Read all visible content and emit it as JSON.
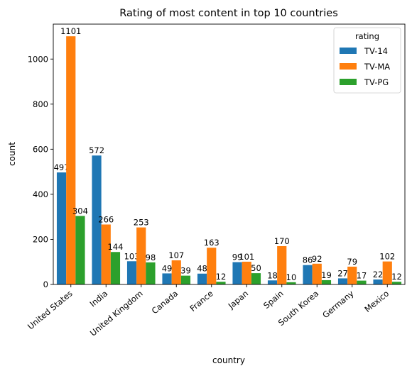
{
  "chart_data": {
    "type": "bar",
    "title": "Rating of most content in top 10 countries",
    "xlabel": "country",
    "ylabel": "count",
    "ylim": [
      0,
      1155
    ],
    "yticks": [
      0,
      200,
      400,
      600,
      800,
      1000
    ],
    "grid": false,
    "legend": {
      "title": "rating",
      "placement": "top-right"
    },
    "categories": [
      "United States",
      "India",
      "United Kingdom",
      "Canada",
      "France",
      "Japan",
      "Spain",
      "South Korea",
      "Germany",
      "Mexico"
    ],
    "series": [
      {
        "name": "TV-14",
        "color": "#1f77b4",
        "values": [
          497,
          572,
          103,
          49,
          48,
          99,
          18,
          86,
          27,
          22
        ]
      },
      {
        "name": "TV-MA",
        "color": "#ff7f0e",
        "values": [
          1101,
          266,
          253,
          107,
          163,
          101,
          170,
          92,
          79,
          102
        ]
      },
      {
        "name": "TV-PG",
        "color": "#2ca02c",
        "values": [
          304,
          144,
          98,
          39,
          12,
          50,
          10,
          19,
          17,
          12
        ]
      }
    ]
  }
}
